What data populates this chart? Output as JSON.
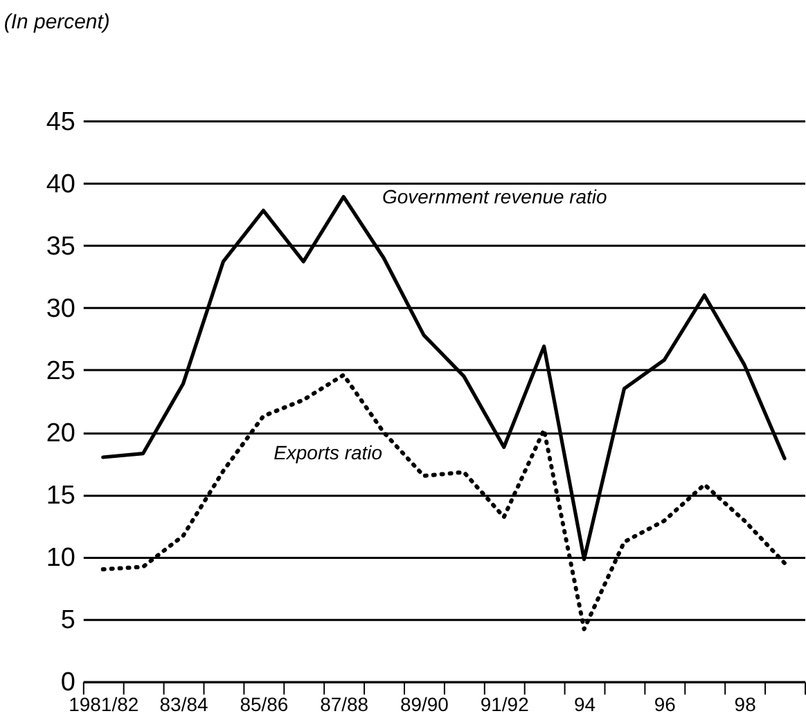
{
  "chart_data": {
    "type": "line",
    "subtitle": "(In percent)",
    "categories": [
      "1981/82",
      null,
      "83/84",
      null,
      "85/86",
      null,
      "87/88",
      null,
      "89/90",
      null,
      "91/92",
      null,
      "94",
      null,
      "96",
      null,
      "98",
      null
    ],
    "series": [
      {
        "name": "Government revenue ratio",
        "color": "#000000",
        "line_style": "solid",
        "values": [
          18.0,
          18.3,
          23.9,
          33.7,
          37.8,
          33.7,
          38.9,
          34.0,
          27.8,
          24.5,
          18.8,
          26.9,
          9.8,
          23.5,
          25.8,
          31.0,
          25.4,
          17.9
        ]
      },
      {
        "name": "Exports ratio",
        "color": "#000000",
        "line_style": "dotted",
        "values": [
          9.0,
          9.2,
          11.7,
          16.9,
          21.3,
          22.6,
          24.6,
          20.0,
          16.5,
          16.8,
          13.2,
          20.2,
          4.2,
          11.2,
          12.9,
          15.8,
          12.9,
          9.5
        ]
      }
    ],
    "ylim": [
      0,
      45
    ],
    "yticks": [
      0,
      5,
      10,
      15,
      20,
      25,
      30,
      35,
      40,
      45
    ],
    "grid": "y",
    "marker": "none"
  }
}
